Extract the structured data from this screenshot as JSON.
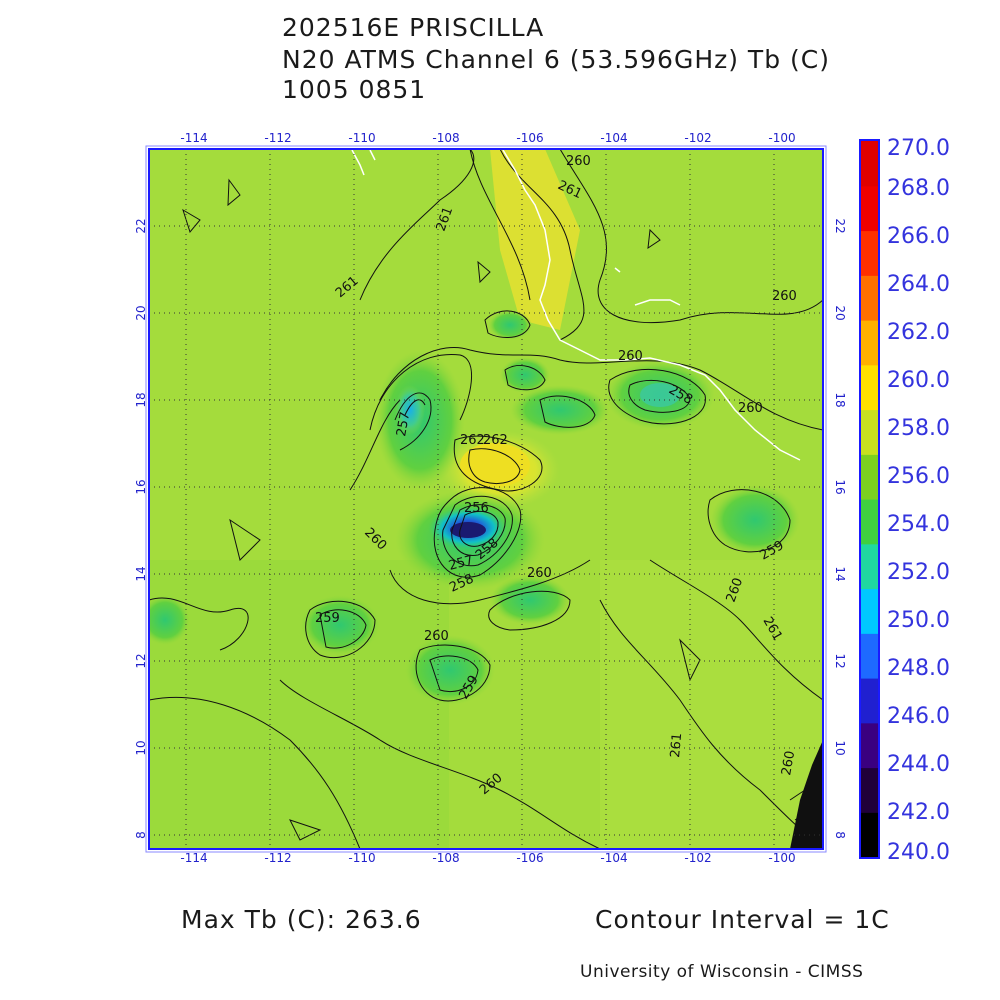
{
  "title": {
    "line1": "202516E PRISCILLA",
    "line2": "N20 ATMS Channel 6 (53.596GHz) Tb (C)",
    "line3": "1005 0851"
  },
  "axes": {
    "lon_labels": [
      "-114",
      "-112",
      "-110",
      "-108",
      "-106",
      "-104",
      "-102",
      "-100"
    ],
    "lat_labels": [
      "8",
      "10",
      "12",
      "14",
      "16",
      "18",
      "20",
      "22"
    ]
  },
  "colorbar": {
    "labels": [
      "270.0",
      "268.0",
      "266.0",
      "264.0",
      "262.0",
      "260.0",
      "258.0",
      "256.0",
      "254.0",
      "252.0",
      "250.0",
      "248.0",
      "246.0",
      "244.0",
      "242.0",
      "240.0"
    ],
    "colors": [
      "#000000",
      "#20003a",
      "#3a0080",
      "#2020d0",
      "#1e6aff",
      "#00c8ff",
      "#20d8a0",
      "#40d040",
      "#7cd020",
      "#c8e020",
      "#ffe000",
      "#ffb000",
      "#ff7000",
      "#ff3000",
      "#f00000",
      "#e00000"
    ]
  },
  "contour_labels": [
    {
      "text": "260"
    },
    {
      "text": "261"
    },
    {
      "text": "261"
    },
    {
      "text": "261"
    },
    {
      "text": "260"
    },
    {
      "text": "260"
    },
    {
      "text": "260"
    },
    {
      "text": "258"
    },
    {
      "text": "257"
    },
    {
      "text": "262"
    },
    {
      "text": "262"
    },
    {
      "text": "256"
    },
    {
      "text": "260"
    },
    {
      "text": "257"
    },
    {
      "text": "258"
    },
    {
      "text": "258"
    },
    {
      "text": "260"
    },
    {
      "text": "259"
    },
    {
      "text": "260"
    },
    {
      "text": "259"
    },
    {
      "text": "260"
    },
    {
      "text": "259"
    },
    {
      "text": "260"
    },
    {
      "text": "261"
    },
    {
      "text": "261"
    },
    {
      "text": "260"
    }
  ],
  "footer": {
    "max_tb": "Max Tb (C): 263.6",
    "contour_interval": "Contour Interval = 1C",
    "credit": "University of Wisconsin - CIMSS"
  }
}
